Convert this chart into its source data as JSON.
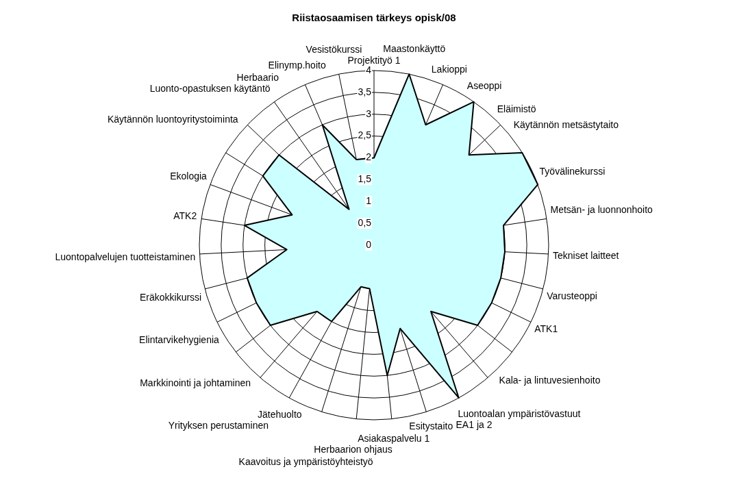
{
  "chart_data": {
    "type": "radar",
    "title": "Riistaosaamisen tärkeys opisk/08",
    "categories": [
      "Projektityö 1",
      "Maastonkäyttö",
      "Lakioppi",
      "Aseoppi",
      "Eläimistö",
      "Käytännön metsästytaito",
      "Työvälinekurssi",
      "Metsän- ja luonnonhoito",
      "Tekniset laitteet",
      "Varusteoppi",
      "ATK1",
      "Kala- ja lintuvesienhoito",
      "Luontoalan ympäristövastuut",
      "EA1 ja 2",
      "Esitystaito",
      "Asiakaspalvelu 1",
      "Herbaarion ohjaus",
      "Kaavoitus ja ympäristöyhteistyö",
      "Jätehuolto",
      "Yrityksen perustaminen",
      "Markkinointi ja johtaminen",
      "Elintarvikehygienia",
      "Eräkokkikurssi",
      "Luontopalvelujen tuotteistaminen",
      "ATK2",
      "Ekologia",
      "Käytännön luontoyritystoiminta",
      "Luonto-opastuksen käytäntö",
      "Herbaario",
      "Elinymp.hoito",
      "Vesistökurssi"
    ],
    "series": [
      {
        "color": "#ccffff",
        "values": [
          2,
          4,
          3,
          4,
          3,
          4,
          4,
          3,
          3,
          3,
          3,
          3,
          2,
          4,
          2,
          3,
          1,
          1,
          2,
          2,
          3,
          3,
          3,
          2,
          3,
          2,
          3,
          3,
          1,
          3,
          2
        ]
      }
    ],
    "ylim": [
      0,
      4
    ],
    "yticks": [
      0,
      {
        "value": 0.5,
        "label": "0,5"
      },
      1,
      {
        "value": 1.5,
        "label": "1,5"
      },
      2,
      {
        "value": 2.5,
        "label": "2,5"
      },
      3,
      {
        "value": 3.5,
        "label": "3,5"
      },
      4
    ],
    "grid": true,
    "marker": "none"
  }
}
